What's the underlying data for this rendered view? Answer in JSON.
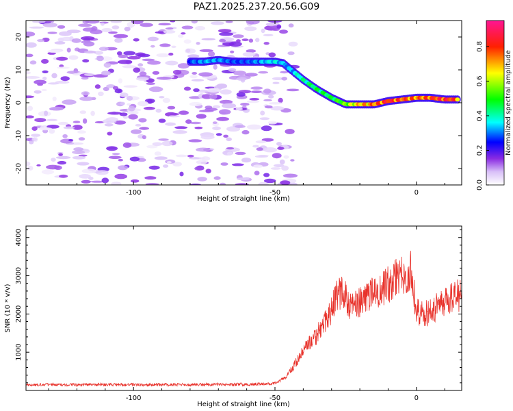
{
  "title": "PAZ1.2025.237.20.56.G09",
  "chart_data": [
    {
      "type": "heatmap",
      "xlabel": "Height of straight line (km)",
      "ylabel": "Frequency (Hz)",
      "xlim": [
        -138,
        16
      ],
      "ylim": [
        -25,
        25
      ],
      "x_ticks": [
        -100,
        -50,
        0
      ],
      "y_ticks": [
        -20,
        -10,
        0,
        10,
        20
      ],
      "colorbar": {
        "label": "Normalized spectral amplitude",
        "range": [
          0.0,
          0.95
        ],
        "ticks": [
          0.0,
          0.2,
          0.4,
          0.6,
          0.8
        ],
        "colormap": [
          "#ffffff",
          "#8a2be2",
          "#0000ff",
          "#00ffff",
          "#00ff00",
          "#ffff00",
          "#ff0000",
          "#ff1493"
        ]
      },
      "ridge": {
        "x": [
          -80,
          -75,
          -70,
          -65,
          -60,
          -55,
          -50,
          -47,
          -45,
          -40,
          -35,
          -30,
          -25,
          -20,
          -15,
          -10,
          -5,
          0,
          5,
          10,
          15
        ],
        "y": [
          12.5,
          12.5,
          13,
          12.5,
          12.5,
          12.5,
          12.5,
          12,
          10.5,
          7,
          4,
          1.5,
          -0.5,
          -0.5,
          -0.5,
          0.5,
          1,
          1.5,
          1.5,
          1,
          1
        ],
        "amplitude": [
          0.3,
          0.35,
          0.35,
          0.3,
          0.3,
          0.35,
          0.4,
          0.35,
          0.35,
          0.45,
          0.5,
          0.5,
          0.6,
          0.75,
          0.8,
          0.9,
          0.85,
          0.8,
          0.85,
          0.9,
          0.85
        ]
      },
      "noise_region": {
        "x_range": [
          -138,
          -43
        ],
        "amplitude_max": 0.15
      },
      "grid": false
    },
    {
      "type": "line",
      "xlabel": "Height of straight line (km)",
      "ylabel": "SNR (10 * v/v)",
      "xlim": [
        -138,
        16
      ],
      "ylim": [
        0,
        4300
      ],
      "x_ticks": [
        -100,
        -50,
        0
      ],
      "y_ticks": [
        1000,
        2000,
        3000,
        4000
      ],
      "color": "#e8312a",
      "grid": false,
      "series": [
        {
          "x": [
            -138,
            -120,
            -100,
            -80,
            -60,
            -50,
            -46,
            -44,
            -42,
            -40,
            -38,
            -36,
            -34,
            -32,
            -30,
            -28,
            -26,
            -24,
            -22,
            -20,
            -18,
            -16,
            -14,
            -12,
            -10,
            -8,
            -6,
            -4,
            -2,
            0,
            2,
            4,
            6,
            8,
            10,
            12,
            14,
            16
          ],
          "y": [
            150,
            150,
            150,
            150,
            160,
            180,
            350,
            550,
            800,
            1050,
            1250,
            1350,
            1600,
            1850,
            2100,
            2500,
            2600,
            2250,
            2200,
            2300,
            2400,
            2550,
            2600,
            2700,
            2750,
            2900,
            3000,
            3050,
            3100,
            2100,
            2000,
            2050,
            2150,
            2250,
            2350,
            2400,
            2450,
            2500
          ]
        }
      ]
    }
  ]
}
